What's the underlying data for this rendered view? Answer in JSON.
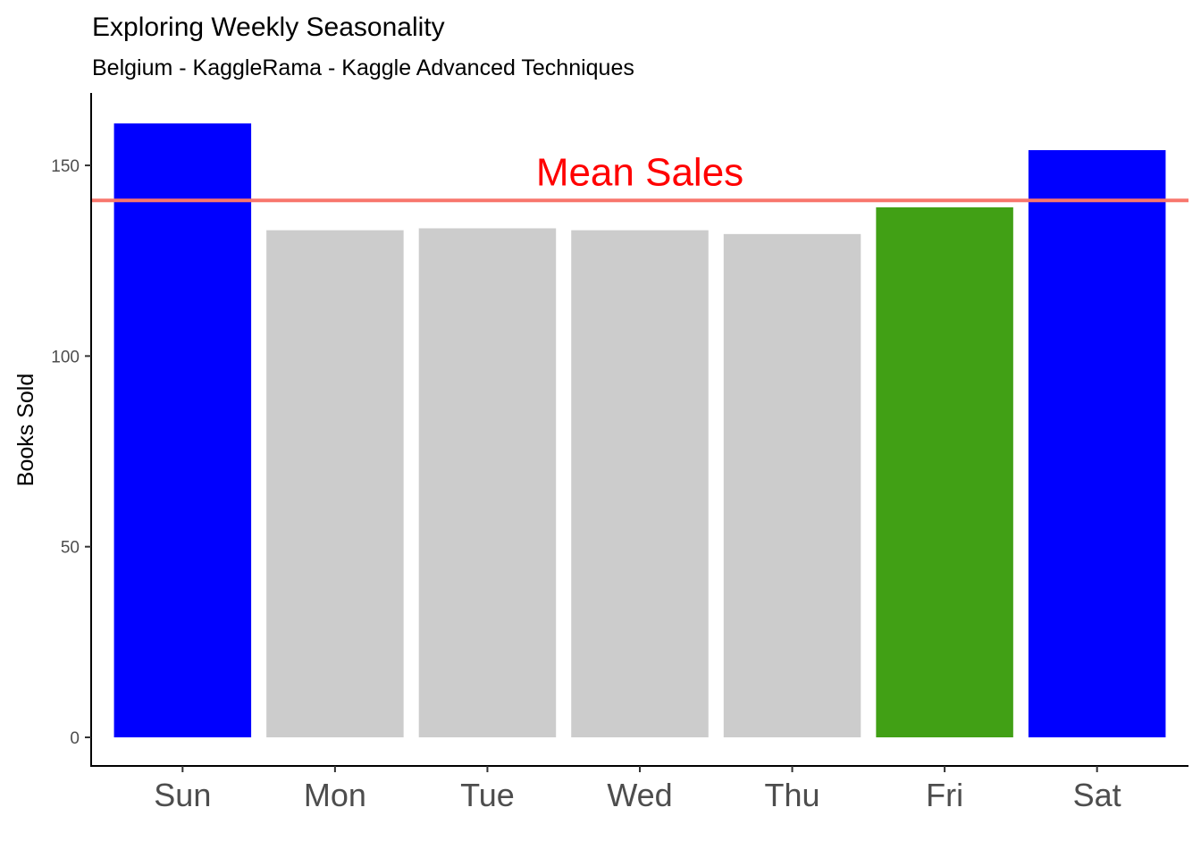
{
  "chart_data": {
    "type": "bar",
    "title": "Exploring Weekly Seasonality",
    "subtitle": "Belgium - KaggleRama - Kaggle Advanced Techniques",
    "xlabel": "",
    "ylabel": "Books Sold",
    "categories": [
      "Sun",
      "Mon",
      "Tue",
      "Wed",
      "Thu",
      "Fri",
      "Sat"
    ],
    "values": [
      161,
      133,
      133.5,
      133,
      132,
      139,
      154
    ],
    "bar_colors": [
      "#0000FF",
      "#CCCCCC",
      "#CCCCCC",
      "#CCCCCC",
      "#CCCCCC",
      "#41A015",
      "#0000FF"
    ],
    "ylim": [
      -7.5,
      169
    ],
    "yticks": [
      0,
      50,
      100,
      150
    ],
    "grid": false,
    "legend": "none",
    "reference_line": {
      "value": 140.8,
      "color": "#F8766D",
      "label": "Mean Sales",
      "label_color": "#FF0000"
    }
  }
}
